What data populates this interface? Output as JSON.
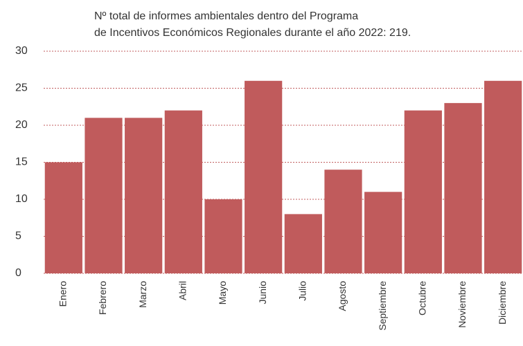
{
  "chart_data": {
    "type": "bar",
    "title": [
      "Nº total de informes ambientales dentro del Programa",
      "de Incentivos Económicos Regionales durante el año 2022: 219."
    ],
    "categories": [
      "Enero",
      "Febrero",
      "Marzo",
      "Abril",
      "Mayo",
      "Junio",
      "Julio",
      "Agosto",
      "Septiembre",
      "Octubre",
      "Noviembre",
      "Diciembre"
    ],
    "values": [
      15,
      21,
      21,
      22,
      10,
      26,
      8,
      14,
      11,
      22,
      23,
      26
    ],
    "color": "#c05b5c",
    "ylim": [
      0,
      30
    ],
    "yticks": [
      0,
      5,
      10,
      15,
      20,
      25,
      30
    ],
    "grid": true
  }
}
